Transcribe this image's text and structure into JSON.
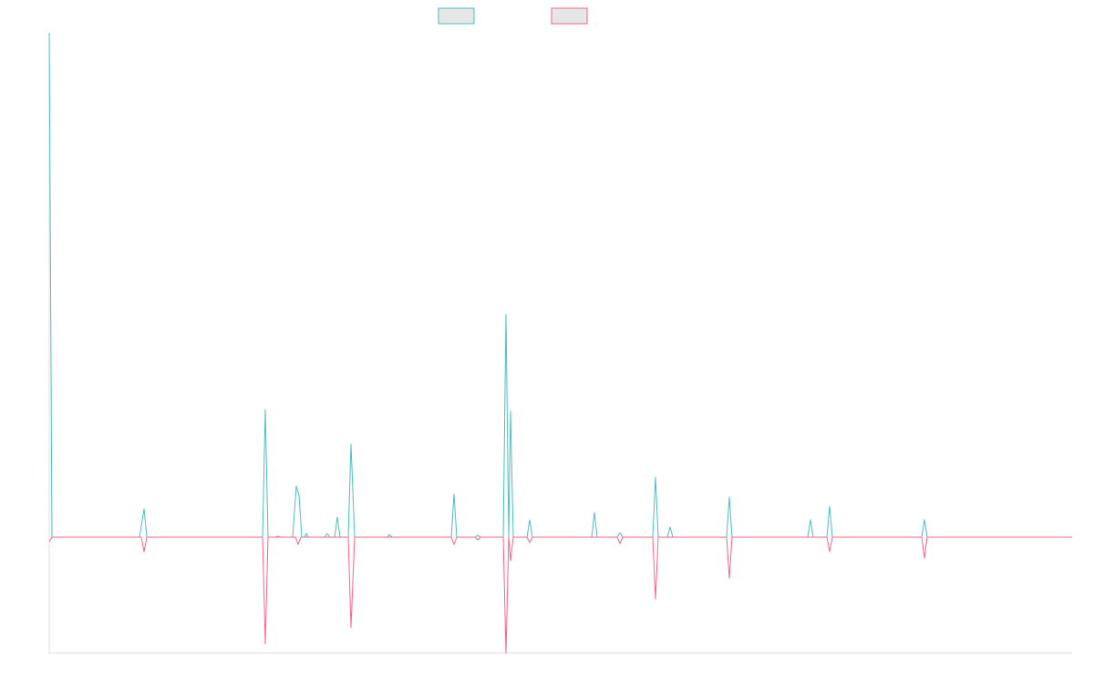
{
  "chart_data": {
    "type": "line",
    "xlim": [
      0,
      1122
    ],
    "ylim": [
      -127,
      553
    ],
    "series": [
      {
        "color": "#4bc0c0",
        "x": [
          0,
          3,
          99,
          104,
          107,
          234,
          237,
          240,
          248,
          251,
          254,
          267,
          271,
          274,
          277,
          280,
          282,
          284,
          302,
          305,
          308,
          313,
          316,
          319,
          328,
          331,
          335,
          371,
          373,
          376,
          441,
          444,
          447,
          467,
          470,
          473,
          498,
          501,
          504,
          506,
          509,
          524,
          527,
          530,
          595,
          598,
          601,
          623,
          626,
          629,
          662,
          665,
          668,
          678,
          681,
          684,
          743,
          746,
          749,
          832,
          835,
          838,
          853,
          856,
          859,
          957,
          960,
          963,
          1122
        ],
        "values": [
          553,
          0,
          0,
          31,
          0,
          0,
          140,
          0,
          0,
          1,
          0,
          0,
          56,
          46,
          0,
          0,
          4,
          0,
          0,
          4,
          0,
          0,
          22,
          0,
          0,
          102,
          0,
          0,
          3,
          0,
          0,
          47,
          0,
          0,
          2,
          0,
          0,
          244,
          0,
          138,
          0,
          0,
          19,
          0,
          0,
          27,
          0,
          0,
          5,
          0,
          0,
          66,
          0,
          0,
          11,
          0,
          0,
          44,
          0,
          0,
          19,
          0,
          0,
          34,
          0,
          0,
          19,
          0,
          0
        ]
      },
      {
        "color": "#ff6384",
        "x": [
          0,
          3,
          101,
          104,
          107,
          234,
          237,
          240,
          270,
          273,
          276,
          328,
          331,
          335,
          441,
          444,
          447,
          467,
          470,
          473,
          498,
          501,
          504,
          506,
          509,
          524,
          527,
          530,
          623,
          626,
          629,
          662,
          665,
          668,
          743,
          746,
          749,
          853,
          856,
          859,
          957,
          960,
          963,
          1122
        ],
        "values": [
          -5,
          0,
          0,
          -16,
          0,
          0,
          -117,
          0,
          0,
          -8,
          0,
          0,
          -99,
          0,
          0,
          -8,
          0,
          0,
          -3,
          0,
          0,
          -127,
          0,
          -26,
          0,
          0,
          -6,
          0,
          0,
          -7,
          0,
          0,
          -68,
          0,
          0,
          -45,
          0,
          0,
          -16,
          0,
          0,
          -23,
          0,
          0
        ]
      }
    ]
  }
}
